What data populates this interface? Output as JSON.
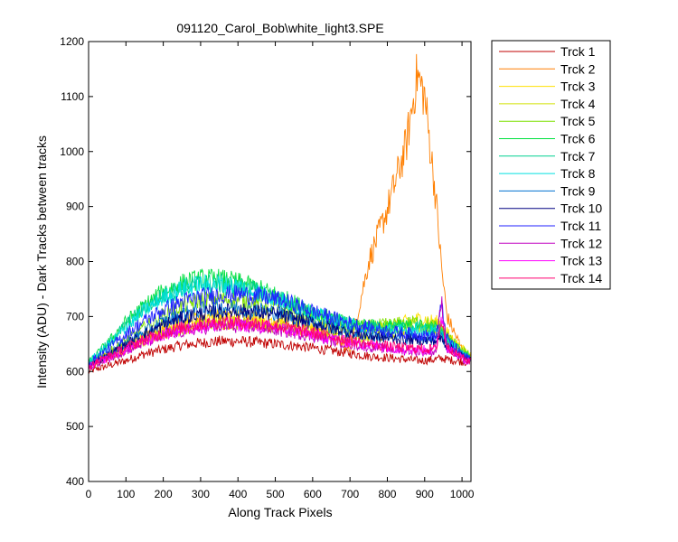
{
  "chart_data": {
    "type": "line",
    "title": "091120_Carol_Bob\\white_light3.SPE",
    "xlabel": "Along Track Pixels",
    "ylabel": "Intensity (ADU) - Dark Tracks between tracks",
    "xlim": [
      0,
      1024
    ],
    "ylim": [
      400,
      1200
    ],
    "xticks": [
      0,
      100,
      200,
      300,
      400,
      500,
      600,
      700,
      800,
      900,
      1000
    ],
    "yticks": [
      400,
      500,
      600,
      700,
      800,
      900,
      1000,
      1100,
      1200
    ],
    "grid": false,
    "legend_position": "outside-right",
    "x": [
      0,
      50,
      100,
      150,
      200,
      250,
      300,
      350,
      400,
      450,
      500,
      550,
      600,
      650,
      700,
      750,
      800,
      850,
      880,
      900,
      930,
      945,
      960,
      1000,
      1023
    ],
    "series": [
      {
        "name": "Trck 1",
        "color": "#c00000",
        "values": [
          600,
          610,
          620,
          632,
          640,
          648,
          652,
          655,
          655,
          653,
          650,
          647,
          643,
          638,
          633,
          628,
          625,
          622,
          620,
          620,
          622,
          624,
          622,
          618,
          616
        ]
      },
      {
        "name": "Trck 2",
        "color": "#ff7f00",
        "values": [
          615,
          630,
          645,
          660,
          672,
          682,
          688,
          690,
          690,
          688,
          684,
          678,
          672,
          664,
          640,
          800,
          895,
          1010,
          1140,
          1100,
          915,
          790,
          700,
          640,
          625
        ]
      },
      {
        "name": "Trck 3",
        "color": "#ffe000",
        "values": [
          612,
          628,
          645,
          662,
          678,
          692,
          700,
          702,
          702,
          700,
          695,
          690,
          683,
          676,
          672,
          675,
          682,
          690,
          695,
          695,
          690,
          688,
          670,
          640,
          630
        ]
      },
      {
        "name": "Trck 4",
        "color": "#d0e000",
        "values": [
          610,
          625,
          640,
          655,
          668,
          678,
          685,
          688,
          688,
          686,
          682,
          676,
          670,
          664,
          660,
          662,
          668,
          674,
          678,
          678,
          674,
          672,
          660,
          635,
          625
        ]
      },
      {
        "name": "Trck 5",
        "color": "#7fe000",
        "values": [
          612,
          632,
          655,
          680,
          702,
          720,
          730,
          732,
          730,
          725,
          718,
          708,
          698,
          688,
          682,
          682,
          685,
          688,
          690,
          688,
          682,
          678,
          665,
          638,
          628
        ]
      },
      {
        "name": "Trck 6",
        "color": "#00e040",
        "values": [
          615,
          650,
          690,
          720,
          745,
          760,
          768,
          768,
          762,
          752,
          740,
          725,
          710,
          697,
          688,
          684,
          682,
          682,
          684,
          682,
          678,
          675,
          660,
          635,
          625
        ]
      },
      {
        "name": "Trck 7",
        "color": "#00d090",
        "values": [
          614,
          648,
          685,
          715,
          738,
          752,
          760,
          760,
          755,
          746,
          735,
          720,
          706,
          694,
          686,
          680,
          678,
          678,
          680,
          678,
          675,
          672,
          658,
          634,
          624
        ]
      },
      {
        "name": "Trck 8",
        "color": "#00e0e0",
        "values": [
          616,
          645,
          680,
          710,
          734,
          750,
          758,
          758,
          754,
          745,
          734,
          720,
          706,
          694,
          685,
          678,
          675,
          674,
          676,
          674,
          670,
          668,
          655,
          632,
          622
        ]
      },
      {
        "name": "Trck 9",
        "color": "#0070d0",
        "values": [
          612,
          630,
          652,
          672,
          690,
          704,
          712,
          716,
          716,
          713,
          707,
          699,
          690,
          680,
          672,
          666,
          662,
          660,
          660,
          660,
          658,
          664,
          650,
          630,
          622
        ]
      },
      {
        "name": "Trck 10",
        "color": "#000080",
        "values": [
          610,
          628,
          648,
          667,
          684,
          697,
          705,
          709,
          710,
          708,
          703,
          696,
          688,
          679,
          671,
          665,
          661,
          659,
          658,
          657,
          655,
          660,
          646,
          628,
          620
        ]
      },
      {
        "name": "Trck 11",
        "color": "#2020ff",
        "values": [
          614,
          640,
          668,
          692,
          712,
          727,
          736,
          740,
          741,
          738,
          732,
          722,
          710,
          698,
          688,
          680,
          674,
          670,
          668,
          666,
          664,
          720,
          660,
          630,
          622
        ]
      },
      {
        "name": "Trck 12",
        "color": "#c000c0",
        "values": [
          608,
          622,
          638,
          652,
          664,
          673,
          679,
          682,
          682,
          680,
          676,
          671,
          664,
          657,
          650,
          645,
          641,
          638,
          637,
          636,
          636,
          730,
          642,
          622,
          616
        ]
      },
      {
        "name": "Trck 13",
        "color": "#ff00ff",
        "values": [
          609,
          624,
          640,
          655,
          667,
          676,
          682,
          685,
          685,
          683,
          679,
          674,
          667,
          660,
          653,
          648,
          644,
          641,
          640,
          639,
          639,
          700,
          645,
          624,
          617
        ]
      },
      {
        "name": "Trck 14",
        "color": "#ff0070",
        "values": [
          610,
          626,
          643,
          658,
          670,
          680,
          686,
          689,
          689,
          687,
          683,
          677,
          670,
          663,
          656,
          650,
          646,
          643,
          642,
          641,
          641,
          690,
          646,
          625,
          618
        ]
      }
    ]
  }
}
